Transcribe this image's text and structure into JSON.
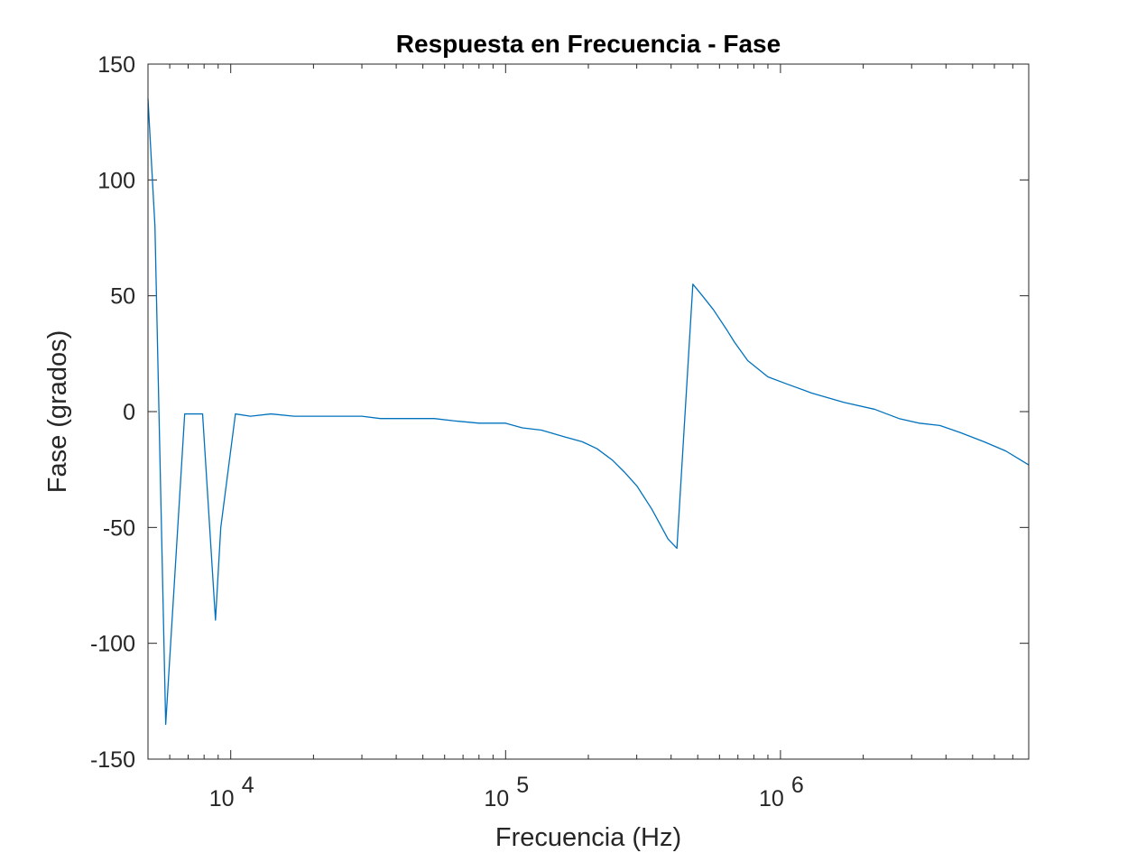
{
  "chart_data": {
    "type": "line",
    "title": "Respuesta en Frecuencia - Fase",
    "xlabel": "Frecuencia (Hz)",
    "ylabel": "Fase (grados)",
    "x_scale": "log",
    "xlim": [
      5000,
      8000000
    ],
    "ylim": [
      -150,
      150
    ],
    "y_ticks": [
      {
        "value": 150,
        "label": "150"
      },
      {
        "value": 100,
        "label": "100"
      },
      {
        "value": 50,
        "label": "50"
      },
      {
        "value": 0,
        "label": "0"
      },
      {
        "value": -50,
        "label": "-50"
      },
      {
        "value": -100,
        "label": "-100"
      },
      {
        "value": -150,
        "label": "-150"
      }
    ],
    "x_ticks": [
      {
        "value": 10000,
        "base": "10",
        "exp": "4"
      },
      {
        "value": 100000,
        "base": "10",
        "exp": "5"
      },
      {
        "value": 1000000,
        "base": "10",
        "exp": "6"
      }
    ],
    "grid": false,
    "box": true,
    "series": [
      {
        "color": "#0072BD",
        "x": [
          5000,
          5300,
          5800,
          6800,
          7900,
          8800,
          9200,
          10400,
          11800,
          14000,
          17000,
          24000,
          30000,
          35000,
          55000,
          65000,
          80000,
          100000,
          115000,
          135000,
          165000,
          190000,
          215000,
          245000,
          270000,
          300000,
          340000,
          390000,
          420000,
          480000,
          520000,
          570000,
          640000,
          680000,
          760000,
          900000,
          1050000,
          1300000,
          1700000,
          2200000,
          2700000,
          3200000,
          3800000,
          4500000,
          5500000,
          6600000,
          8000000
        ],
        "y": [
          135,
          80,
          -135,
          -1,
          -1,
          -90,
          -50,
          -1,
          -2,
          -1,
          -2,
          -2,
          -2,
          -3,
          -3,
          -4,
          -5,
          -5,
          -7,
          -8,
          -11,
          -13,
          -16,
          -21,
          -26,
          -32,
          -42,
          -55,
          -59,
          55,
          50,
          44,
          35,
          30,
          22,
          15,
          12,
          8,
          4,
          1,
          -3,
          -5,
          -6,
          -9,
          -13,
          -17,
          -23
        ]
      }
    ]
  }
}
